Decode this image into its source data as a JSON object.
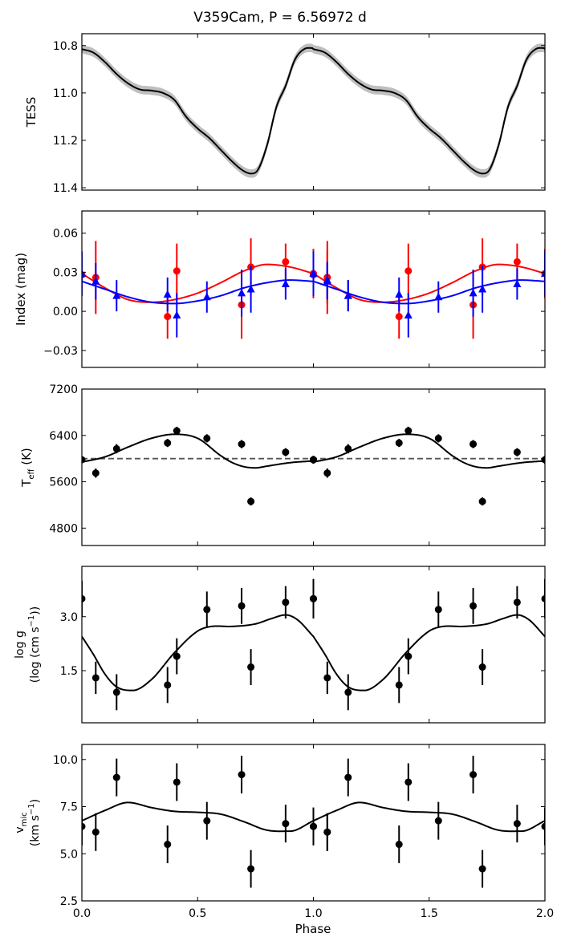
{
  "figure_title": "V359Cam, P = 6.56972 d",
  "xlabel": "Phase",
  "xticks": [
    "0.0",
    "0.5",
    "1.0",
    "1.5",
    "2.0"
  ],
  "colors": {
    "red": "#ff0000",
    "blue": "#0000ff",
    "black": "#000000",
    "grey": "#bfbfbf",
    "dash": "#555555"
  },
  "chart_data": [
    {
      "type": "line",
      "name": "tess",
      "ylabel": "TESS",
      "ylim": [
        11.41,
        10.75
      ],
      "xlim": [
        0,
        2
      ],
      "yticks": [
        10.8,
        11.0,
        11.2,
        11.4
      ],
      "ytick_labels": [
        "10.8",
        "11.0",
        "11.2",
        "11.4"
      ],
      "band_halfwidth": 0.018,
      "curve": {
        "x": [
          0.0,
          0.05,
          0.1,
          0.15,
          0.2,
          0.25,
          0.3,
          0.35,
          0.4,
          0.45,
          0.5,
          0.55,
          0.6,
          0.65,
          0.7,
          0.73,
          0.76,
          0.8,
          0.84,
          0.88,
          0.92,
          0.96,
          1.0
        ],
        "y": [
          10.815,
          10.83,
          10.87,
          10.92,
          10.96,
          10.985,
          10.99,
          11.0,
          11.03,
          11.1,
          11.15,
          11.19,
          11.24,
          11.29,
          11.33,
          11.34,
          11.325,
          11.22,
          11.06,
          10.97,
          10.86,
          10.815,
          10.81
        ]
      }
    },
    {
      "type": "scatter",
      "name": "index",
      "ylabel": "Index (mag)",
      "ylim": [
        -0.043,
        0.077
      ],
      "xlim": [
        0,
        2
      ],
      "yticks": [
        0.06,
        0.03,
        0.0,
        -0.03
      ],
      "ytick_labels": [
        "0.06",
        "0.03",
        "0.00",
        "−0.03"
      ],
      "series": [
        {
          "name": "red",
          "marker": "circle",
          "x": [
            0.0,
            0.06,
            0.37,
            0.41,
            0.69,
            0.73,
            0.88,
            1.0,
            1.06
          ],
          "y": [
            0.028,
            0.026,
            -0.004,
            0.031,
            0.005,
            0.034,
            0.038,
            0.029,
            0.026
          ],
          "err": [
            0.016,
            0.028,
            0.017,
            0.021,
            0.026,
            0.022,
            0.014,
            0.019,
            0.02
          ],
          "fit_x": [
            0.0,
            0.1,
            0.2,
            0.3,
            0.4,
            0.5,
            0.6,
            0.7,
            0.8,
            0.9,
            1.0
          ],
          "fit_y": [
            0.029,
            0.018,
            0.009,
            0.007,
            0.009,
            0.014,
            0.022,
            0.031,
            0.036,
            0.034,
            0.029
          ]
        },
        {
          "name": "blue",
          "marker": "triangle",
          "x": [
            0.0,
            0.06,
            0.15,
            0.37,
            0.41,
            0.54,
            0.69,
            0.73,
            0.88,
            1.0,
            1.06,
            1.15
          ],
          "y": [
            0.029,
            0.023,
            0.012,
            0.013,
            -0.003,
            0.011,
            0.014,
            0.017,
            0.021,
            0.029,
            0.024,
            0.012
          ],
          "err": [
            0.017,
            0.014,
            0.012,
            0.013,
            0.017,
            0.012,
            0.018,
            0.018,
            0.012,
            0.017,
            0.014,
            0.012
          ],
          "fit_x": [
            0.0,
            0.1,
            0.2,
            0.3,
            0.4,
            0.5,
            0.6,
            0.7,
            0.8,
            0.9,
            1.0
          ],
          "fit_y": [
            0.023,
            0.017,
            0.011,
            0.007,
            0.006,
            0.008,
            0.012,
            0.018,
            0.022,
            0.024,
            0.023
          ]
        }
      ]
    },
    {
      "type": "scatter",
      "name": "teff",
      "ylabel": "T",
      "ylabel_sub": "eff",
      "ylabel_tail": " (K)",
      "ylim": [
        4500,
        7200
      ],
      "xlim": [
        0,
        2
      ],
      "yticks": [
        7200,
        6400,
        5600,
        4800
      ],
      "ytick_labels": [
        "7200",
        "6400",
        "5600",
        "4800"
      ],
      "reference_line": 6000,
      "series": [
        {
          "name": "teff",
          "x": [
            0.0,
            0.06,
            0.15,
            0.37,
            0.41,
            0.54,
            0.69,
            0.73,
            0.88,
            1.0
          ],
          "y": [
            5980,
            5750,
            6170,
            6270,
            6480,
            6350,
            6250,
            5260,
            6110,
            5980
          ],
          "err": [
            60,
            80,
            80,
            70,
            70,
            70,
            70,
            70,
            70,
            70
          ],
          "fit_x": [
            0.0,
            0.1,
            0.2,
            0.3,
            0.4,
            0.5,
            0.6,
            0.65,
            0.7,
            0.75,
            0.8,
            0.9,
            1.0
          ],
          "fit_y": [
            5940,
            6030,
            6200,
            6350,
            6420,
            6350,
            6050,
            5930,
            5860,
            5840,
            5870,
            5930,
            5960
          ]
        }
      ]
    },
    {
      "type": "scatter",
      "name": "logg",
      "ylabel": "log g",
      "ylabel2": "(log (cm s",
      "ylabel2_sup": "−1",
      "ylabel2_tail": "))",
      "ylim": [
        0.05,
        4.4
      ],
      "xlim": [
        0,
        2
      ],
      "yticks": [
        3.0,
        1.5
      ],
      "ytick_labels": [
        "3.0",
        "1.5"
      ],
      "series": [
        {
          "name": "logg",
          "x": [
            0.0,
            0.06,
            0.15,
            0.37,
            0.41,
            0.54,
            0.69,
            0.73,
            0.88,
            1.0
          ],
          "y": [
            3.5,
            1.3,
            0.9,
            1.1,
            1.9,
            3.2,
            3.3,
            1.6,
            3.4,
            3.5
          ],
          "err": [
            0.5,
            0.45,
            0.5,
            0.5,
            0.5,
            0.5,
            0.5,
            0.5,
            0.45,
            0.55
          ],
          "fit_x": [
            0.0,
            0.05,
            0.1,
            0.15,
            0.22,
            0.3,
            0.4,
            0.5,
            0.55,
            0.65,
            0.75,
            0.82,
            0.88,
            0.93,
            1.0
          ],
          "fit_y": [
            2.45,
            1.95,
            1.4,
            1.05,
            0.95,
            1.25,
            2.0,
            2.6,
            2.72,
            2.73,
            2.8,
            2.95,
            3.05,
            2.92,
            2.45
          ]
        }
      ]
    },
    {
      "type": "scatter",
      "name": "vmic",
      "ylabel": "v",
      "ylabel_sub": "mic",
      "ylabel2": "(km s",
      "ylabel2_sup": "−1",
      "ylabel2_tail": ")",
      "ylim": [
        2.5,
        10.8
      ],
      "xlim": [
        0,
        2
      ],
      "yticks": [
        10.0,
        7.5,
        5.0,
        2.5
      ],
      "ytick_labels": [
        "10.0",
        "7.5",
        "5.0",
        "2.5"
      ],
      "series": [
        {
          "name": "vmic",
          "x": [
            0.0,
            0.06,
            0.15,
            0.37,
            0.41,
            0.54,
            0.69,
            0.73,
            0.88,
            1.0,
            1.06
          ],
          "y": [
            6.45,
            6.15,
            9.05,
            5.5,
            8.8,
            6.75,
            9.2,
            4.2,
            6.6,
            6.45,
            6.15
          ],
          "err": [
            1.0,
            1.0,
            1.0,
            1.0,
            1.0,
            1.0,
            1.0,
            1.0,
            1.0,
            1.0,
            1.0
          ],
          "fit_x": [
            0.0,
            0.1,
            0.2,
            0.3,
            0.4,
            0.5,
            0.6,
            0.7,
            0.8,
            0.9,
            1.0
          ],
          "fit_y": [
            6.75,
            7.3,
            7.72,
            7.45,
            7.25,
            7.2,
            7.1,
            6.7,
            6.25,
            6.2,
            6.75
          ]
        }
      ]
    }
  ]
}
